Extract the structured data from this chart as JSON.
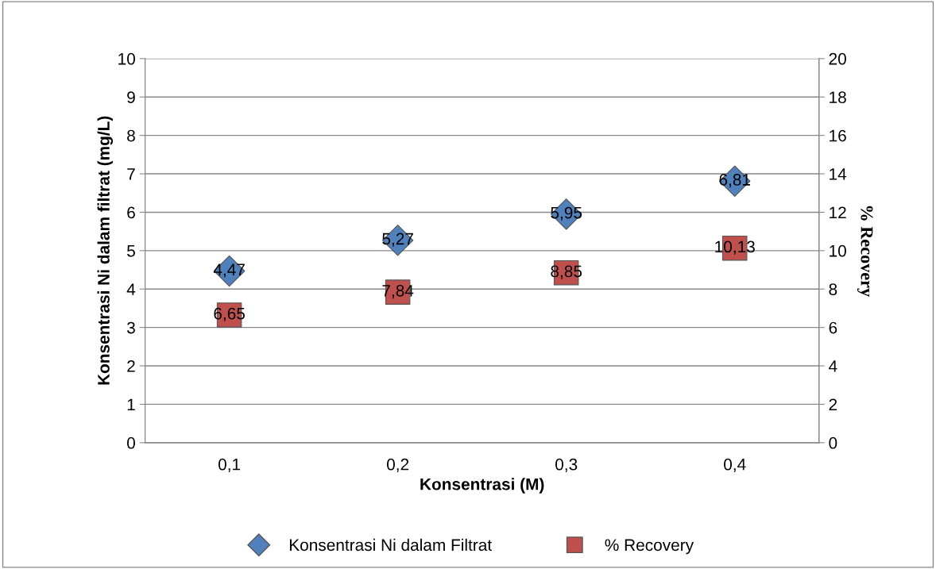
{
  "chart_data": {
    "type": "scatter",
    "xlabel": "Konsentrasi (M)",
    "ylabel": "Konsentrasi Ni dalam filtrat (mg/L)",
    "y2label": "% Recovery",
    "categories": [
      "0,1",
      "0,2",
      "0,3",
      "0,4"
    ],
    "series": [
      {
        "name": "Konsentrasi Ni dalam Filtrat",
        "color": "#4f81bd",
        "marker": "diamond",
        "values": [
          4.47,
          5.27,
          5.95,
          6.81
        ],
        "value_labels": [
          "4,47",
          "5,27",
          "5,95",
          "6,81"
        ]
      },
      {
        "name": "% Recovery",
        "color": "#c0504d",
        "marker": "square",
        "axis": "y2",
        "values": [
          6.65,
          7.84,
          8.85,
          10.13
        ],
        "value_labels": [
          "6,65",
          "7,84",
          "8,85",
          "10,13"
        ]
      }
    ],
    "ylim": [
      0,
      10
    ],
    "yticks": [
      0,
      1,
      2,
      3,
      4,
      5,
      6,
      7,
      8,
      9,
      10
    ],
    "y2lim": [
      0,
      20
    ],
    "y2ticks": [
      0,
      2,
      4,
      6,
      8,
      10,
      12,
      14,
      16,
      18,
      20
    ],
    "grid": "y",
    "legend": "bottom"
  }
}
